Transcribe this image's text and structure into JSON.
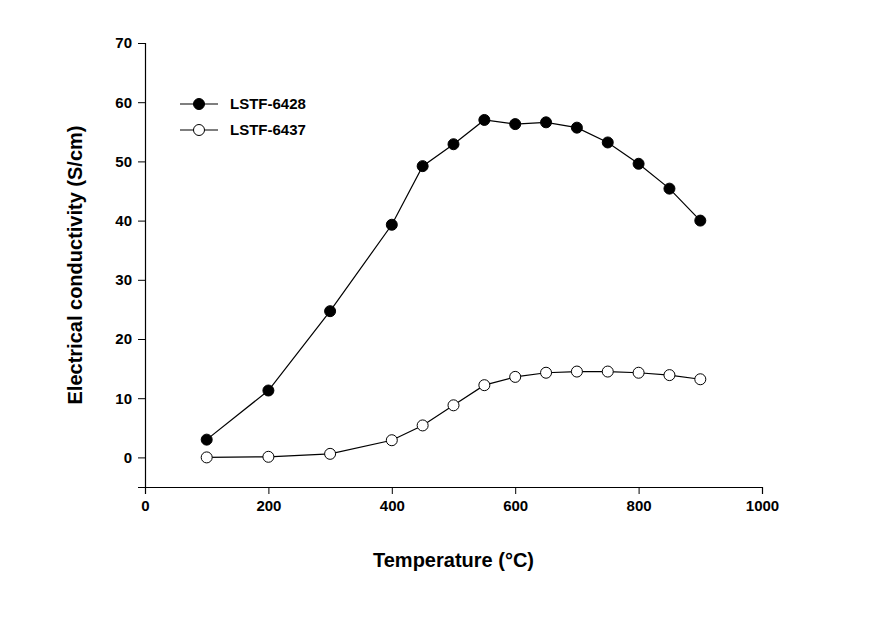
{
  "chart_data": {
    "type": "line",
    "x_label": "Temperature (°C)",
    "y_label": "Electrical conductivity (S/cm)",
    "x": [
      100,
      200,
      300,
      400,
      450,
      500,
      550,
      600,
      650,
      700,
      750,
      800,
      850,
      900
    ],
    "series": [
      {
        "name": "LSTF-6428",
        "color": "#000000",
        "marker": "circle",
        "line_style": "solid",
        "values": [
          3,
          11.3,
          24.7,
          39.3,
          49.2,
          52.9,
          57,
          56.3,
          56.6,
          55.7,
          53.2,
          49.6,
          45.4,
          40
        ]
      },
      {
        "name": "LSTF-6437",
        "color": "#000000",
        "marker": "open-circle",
        "line_style": "solid",
        "values": [
          0,
          0.1,
          0.6,
          2.9,
          5.4,
          8.8,
          12.2,
          13.6,
          14.3,
          14.5,
          14.5,
          14.3,
          13.9,
          13.2
        ]
      }
    ],
    "xlim": [
      0,
      1000
    ],
    "xticks": [
      0,
      200,
      400,
      600,
      800,
      1000
    ],
    "ylim": [
      -5,
      70
    ],
    "yticks": [
      0,
      10,
      20,
      30,
      40,
      50,
      60,
      70
    ],
    "legend": "upper left",
    "grid": false
  }
}
